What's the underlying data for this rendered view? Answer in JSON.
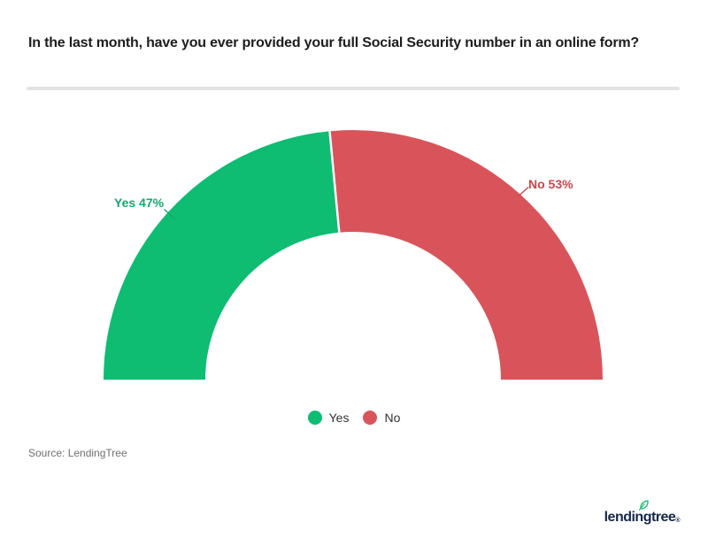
{
  "header": {
    "title": "In the last month, have you ever provided your full Social Security number in an online form?"
  },
  "chart_data": {
    "type": "pie",
    "subtype": "half-donut",
    "categories": [
      "Yes",
      "No"
    ],
    "values": [
      47,
      53
    ],
    "unit": "%",
    "labels": [
      "Yes 47%",
      "No 53%"
    ],
    "colors": {
      "yes": "#0ebc72",
      "no": "#d9545a"
    },
    "label_colors": {
      "yes": "#0fab6d",
      "no": "#cb464c"
    },
    "legend_position": "bottom-center",
    "title": "In the last month, have you ever provided your full Social Security number in an online form?"
  },
  "footer": {
    "source": "Source: LendingTree",
    "brand": "lendingtree",
    "registered_mark": "®"
  }
}
